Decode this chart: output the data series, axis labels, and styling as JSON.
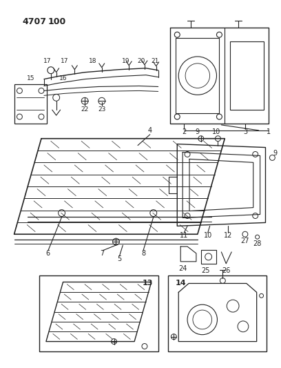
{
  "bg_color": "#ffffff",
  "line_color": "#222222",
  "text_color": "#222222",
  "figsize": [
    4.08,
    5.33
  ],
  "dpi": 100,
  "title": "4707  100"
}
